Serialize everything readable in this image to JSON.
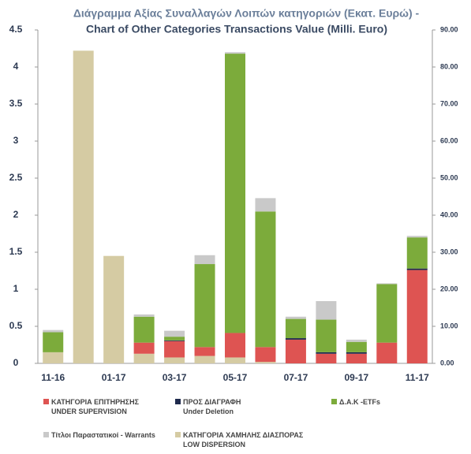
{
  "chart_data": {
    "type": "stacked-bar",
    "title": "Διάγραμμα Αξίας Συναλλαγών Λοιπών κατηγοριών (Εκατ.  Ευρώ) -",
    "subtitle": "Chart of Other Categories Transactions Value (Milli. Euro)",
    "categories": [
      "11-16",
      null,
      "01-17",
      null,
      "03-17",
      null,
      "05-17",
      null,
      "07-17",
      null,
      "09-17",
      null,
      "11-17"
    ],
    "series": [
      {
        "name": "ΚΑΤΗΓΟΡΙΑ ΕΠΙΤΗΡΗΣΗΣ\nUNDER SUPERVISION",
        "color": "#de5452",
        "values": [
          0,
          0,
          0,
          0.15,
          0.22,
          0.12,
          0.33,
          0.2,
          0.32,
          0.13,
          0.13,
          0.28,
          1.26
        ]
      },
      {
        "name": "ΠΡΟΣ ΔΙΑΓΡΑΦΗ\nUnder Deletion",
        "color": "#1f2a4d",
        "values": [
          0,
          0,
          0,
          0,
          0.01,
          0,
          0,
          0,
          0.02,
          0.02,
          0.02,
          0,
          0.02
        ]
      },
      {
        "name": "Δ.Α.Κ -ETFs",
        "color": "#7cab3b",
        "values": [
          0.27,
          0,
          0,
          0.35,
          0.05,
          1.12,
          3.77,
          1.83,
          0.26,
          0.44,
          0.14,
          0.79,
          0.42
        ]
      },
      {
        "name": "Τίτλοι Παραστατικοί - Warrants",
        "color": "#c9c9c9",
        "values": [
          0.03,
          0,
          0,
          0.03,
          0.08,
          0.12,
          0.02,
          0.18,
          0.03,
          0.25,
          0.03,
          0.01,
          0.02
        ]
      },
      {
        "name": "ΚΑΤΗΓΟΡΙΑ ΧΑΜΗΛΗΣ ΔΙΑΣΠΟΡΑΣ\nLOW DISPERSION",
        "color": "#d5cba3",
        "values": [
          0.15,
          4.22,
          1.45,
          0.13,
          0.08,
          0.1,
          0.08,
          0.02,
          0,
          0,
          0,
          0,
          0
        ]
      }
    ],
    "ylim": [
      0,
      4.5
    ],
    "yticks": [
      0,
      0.5,
      1,
      1.5,
      2,
      2.5,
      3,
      3.5,
      4,
      4.5
    ],
    "y2lim": [
      0,
      90
    ],
    "y2ticks": [
      {
        "value": 0,
        "label": "0.00"
      },
      {
        "value": 10,
        "label": "10.00"
      },
      {
        "value": 20,
        "label": "20.00"
      },
      {
        "value": 30,
        "label": "30.00"
      },
      {
        "value": 40,
        "label": "40.00"
      },
      {
        "value": 50,
        "label": "50.00"
      },
      {
        "value": 60,
        "label": "60.00"
      },
      {
        "value": 70,
        "label": "70.00"
      },
      {
        "value": 80,
        "label": "80.00"
      },
      {
        "value": 90,
        "label": "90.00"
      }
    ]
  }
}
